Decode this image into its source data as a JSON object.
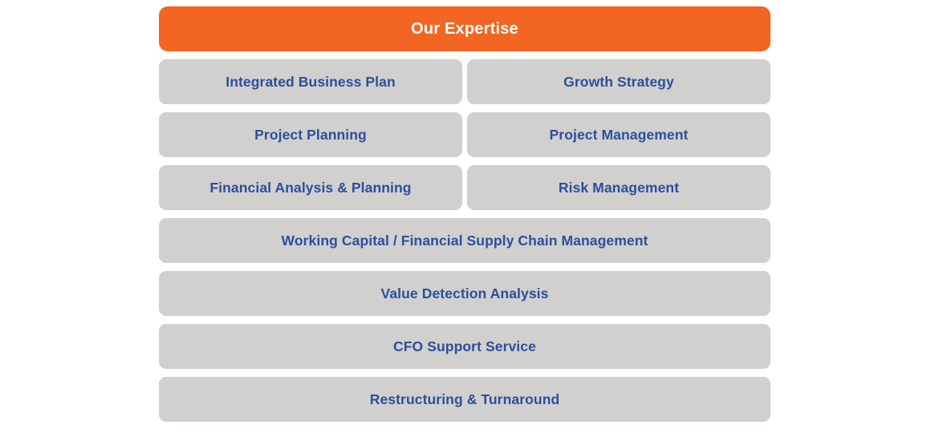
{
  "header": {
    "label": "Our Expertise"
  },
  "colors": {
    "header_bg": "#F26522",
    "header_text": "#FFFFFF",
    "card_bg": "#D1D0CE",
    "card_text": "#2B4F9E",
    "page_bg": "#FFFFFF"
  },
  "expertise": {
    "items": [
      {
        "label": "Integrated Business Plan",
        "span": "half"
      },
      {
        "label": "Growth Strategy",
        "span": "half"
      },
      {
        "label": "Project Planning",
        "span": "half"
      },
      {
        "label": "Project Management",
        "span": "half"
      },
      {
        "label": "Financial Analysis & Planning",
        "span": "half"
      },
      {
        "label": "Risk Management",
        "span": "half"
      },
      {
        "label": "Working Capital / Financial Supply Chain Management",
        "span": "full"
      },
      {
        "label": "Value Detection Analysis",
        "span": "full"
      },
      {
        "label": "CFO Support Service",
        "span": "full"
      },
      {
        "label": "Restructuring & Turnaround",
        "span": "full"
      }
    ]
  }
}
